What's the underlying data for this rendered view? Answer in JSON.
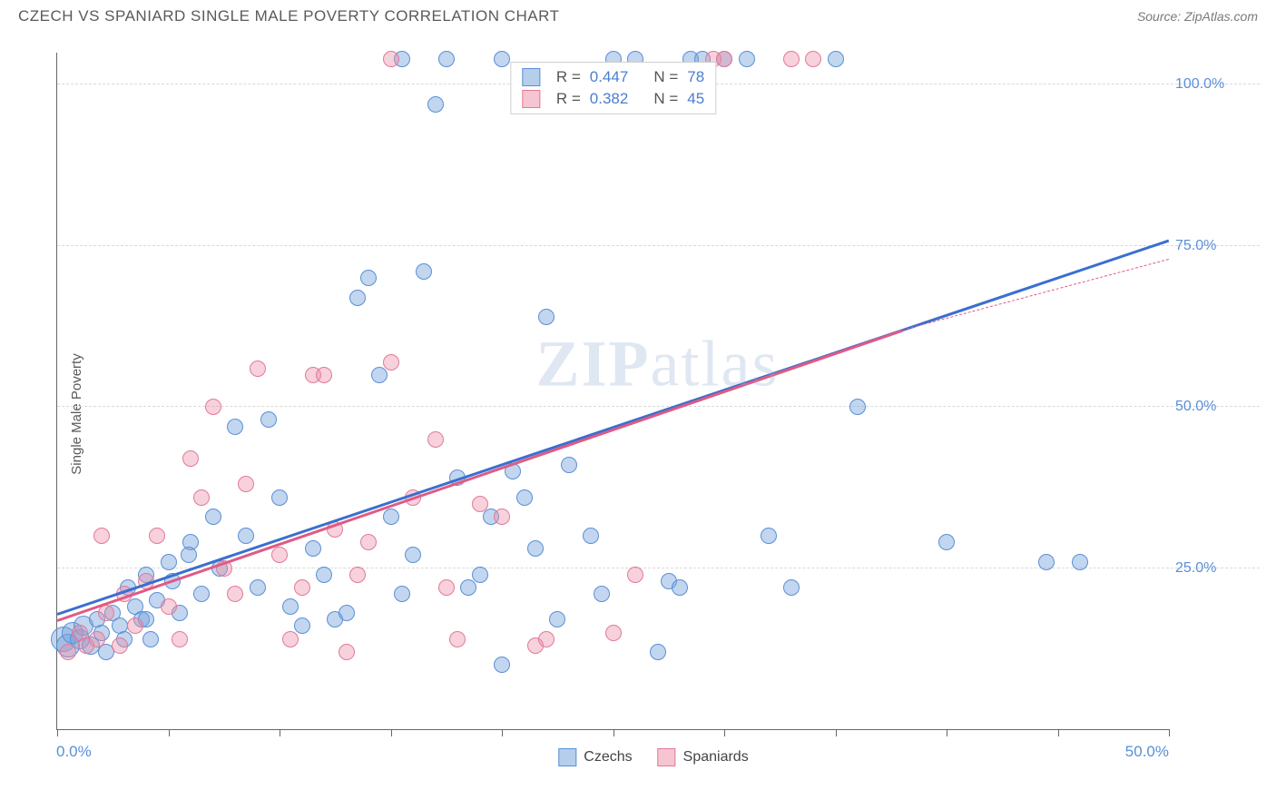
{
  "title": "CZECH VS SPANIARD SINGLE MALE POVERTY CORRELATION CHART",
  "source_label": "Source: ZipAtlas.com",
  "ylabel": "Single Male Poverty",
  "watermark": {
    "bold": "ZIP",
    "rest": "atlas"
  },
  "chart": {
    "type": "scatter",
    "xlim": [
      0,
      50
    ],
    "ylim": [
      0,
      105
    ],
    "x_ticks": [
      0,
      5,
      10,
      15,
      20,
      25,
      30,
      35,
      40,
      45,
      50
    ],
    "x_tick_labels": {
      "start": "0.0%",
      "end": "50.0%"
    },
    "y_ticks": [
      25,
      50,
      75,
      100
    ],
    "y_tick_labels": [
      "25.0%",
      "50.0%",
      "75.0%",
      "100.0%"
    ],
    "grid_color": "#d9d9d9",
    "background": "#ffffff",
    "axis_color": "#666666",
    "marker_radius_min": 7,
    "marker_radius_max": 11,
    "marker_opacity": 0.55,
    "series": [
      {
        "name": "Czechs",
        "color_fill": "rgba(120,165,220,0.45)",
        "color_stroke": "#5a8fd6",
        "trend_color": "#3a6fd0",
        "trend": {
          "x0": 0,
          "y0": 18,
          "x1": 50,
          "y1": 76
        },
        "R": "0.447",
        "N": "78",
        "points": [
          [
            0.3,
            14,
            14
          ],
          [
            0.5,
            13,
            13
          ],
          [
            0.7,
            15,
            12
          ],
          [
            1.0,
            14,
            11
          ],
          [
            1.2,
            16,
            11
          ],
          [
            1.5,
            13,
            10
          ],
          [
            1.8,
            17,
            9
          ],
          [
            2.0,
            15,
            9
          ],
          [
            2.2,
            12,
            9
          ],
          [
            2.5,
            18,
            9
          ],
          [
            2.8,
            16,
            9
          ],
          [
            3.0,
            14,
            9
          ],
          [
            3.2,
            22,
            9
          ],
          [
            3.5,
            19,
            9
          ],
          [
            3.8,
            17,
            9
          ],
          [
            4.0,
            24,
            9
          ],
          [
            4.2,
            14,
            9
          ],
          [
            4.5,
            20,
            9
          ],
          [
            5.0,
            26,
            9
          ],
          [
            5.2,
            23,
            9
          ],
          [
            5.5,
            18,
            9
          ],
          [
            6.0,
            29,
            9
          ],
          [
            5.9,
            27,
            9
          ],
          [
            6.5,
            21,
            9
          ],
          [
            4.0,
            17,
            9
          ],
          [
            7.0,
            33,
            9
          ],
          [
            7.3,
            25,
            9
          ],
          [
            8.0,
            47,
            9
          ],
          [
            8.5,
            30,
            9
          ],
          [
            9.0,
            22,
            9
          ],
          [
            9.5,
            48,
            9
          ],
          [
            10.0,
            36,
            9
          ],
          [
            10.5,
            19,
            9
          ],
          [
            11.0,
            16,
            9
          ],
          [
            11.5,
            28,
            9
          ],
          [
            12.0,
            24,
            9
          ],
          [
            12.5,
            17,
            9
          ],
          [
            13.0,
            18,
            9
          ],
          [
            13.5,
            67,
            9
          ],
          [
            14.0,
            70,
            9
          ],
          [
            14.5,
            55,
            9
          ],
          [
            15.0,
            33,
            9
          ],
          [
            15.5,
            21,
            9
          ],
          [
            16.0,
            27,
            9
          ],
          [
            16.5,
            71,
            9
          ],
          [
            17.0,
            97,
            9
          ],
          [
            15.5,
            104,
            9
          ],
          [
            17.5,
            104,
            9
          ],
          [
            18.0,
            39,
            9
          ],
          [
            18.5,
            22,
            9
          ],
          [
            19.0,
            24,
            9
          ],
          [
            19.5,
            33,
            9
          ],
          [
            20.0,
            104,
            9
          ],
          [
            20.5,
            40,
            9
          ],
          [
            21.0,
            36,
            9
          ],
          [
            21.5,
            28,
            9
          ],
          [
            22.0,
            64,
            9
          ],
          [
            22.5,
            17,
            9
          ],
          [
            23.0,
            41,
            9
          ],
          [
            20.0,
            10,
            9
          ],
          [
            24.0,
            30,
            9
          ],
          [
            24.5,
            21,
            9
          ],
          [
            25.0,
            104,
            9
          ],
          [
            27.0,
            12,
            9
          ],
          [
            27.5,
            23,
            9
          ],
          [
            28.0,
            22,
            9
          ],
          [
            28.5,
            104,
            9
          ],
          [
            30.0,
            104,
            9
          ],
          [
            31.0,
            104,
            9
          ],
          [
            32.0,
            30,
            9
          ],
          [
            33.0,
            22,
            9
          ],
          [
            35.0,
            104,
            9
          ],
          [
            36.0,
            50,
            9
          ],
          [
            40.0,
            29,
            9
          ],
          [
            44.5,
            26,
            9
          ],
          [
            46.0,
            26,
            9
          ],
          [
            26.0,
            104,
            9
          ],
          [
            29.0,
            104,
            9
          ]
        ]
      },
      {
        "name": "Spaniards",
        "color_fill": "rgba(235,140,165,0.40)",
        "color_stroke": "#e27a98",
        "trend_color": "#e05a85",
        "trend": {
          "x0": 0,
          "y0": 17,
          "x1": 38,
          "y1": 62
        },
        "trend_dash": {
          "x0": 38,
          "y0": 62,
          "x1": 50,
          "y1": 73
        },
        "R": "0.382",
        "N": "45",
        "points": [
          [
            0.5,
            12,
            9
          ],
          [
            1.0,
            15,
            9
          ],
          [
            1.3,
            13,
            9
          ],
          [
            1.8,
            14,
            9
          ],
          [
            2.0,
            30,
            9
          ],
          [
            2.2,
            18,
            9
          ],
          [
            2.8,
            13,
            9
          ],
          [
            3.0,
            21,
            9
          ],
          [
            3.5,
            16,
            9
          ],
          [
            4.0,
            23,
            9
          ],
          [
            4.5,
            30,
            9
          ],
          [
            5.0,
            19,
            9
          ],
          [
            5.5,
            14,
            9
          ],
          [
            6.0,
            42,
            9
          ],
          [
            6.5,
            36,
            9
          ],
          [
            7.0,
            50,
            9
          ],
          [
            7.5,
            25,
            9
          ],
          [
            8.0,
            21,
            9
          ],
          [
            8.5,
            38,
            9
          ],
          [
            9.0,
            56,
            9
          ],
          [
            10.0,
            27,
            9
          ],
          [
            10.5,
            14,
            9
          ],
          [
            11.0,
            22,
            9
          ],
          [
            11.5,
            55,
            9
          ],
          [
            12.0,
            55,
            9
          ],
          [
            12.5,
            31,
            9
          ],
          [
            13.0,
            12,
            9
          ],
          [
            13.5,
            24,
            9
          ],
          [
            14.0,
            29,
            9
          ],
          [
            15.0,
            57,
            9
          ],
          [
            16.0,
            36,
            9
          ],
          [
            15.0,
            104,
            9
          ],
          [
            17.0,
            45,
            9
          ],
          [
            17.5,
            22,
            9
          ],
          [
            18.0,
            14,
            9
          ],
          [
            19.0,
            35,
            9
          ],
          [
            20.0,
            33,
            9
          ],
          [
            21.5,
            13,
            9
          ],
          [
            22.0,
            14,
            9
          ],
          [
            25.0,
            15,
            9
          ],
          [
            26.0,
            24,
            9
          ],
          [
            29.5,
            104,
            9
          ],
          [
            30.0,
            104,
            9
          ],
          [
            34.0,
            104,
            9
          ],
          [
            33.0,
            104,
            9
          ]
        ]
      }
    ],
    "legend": {
      "items": [
        {
          "label": "Czechs",
          "fill": "rgba(120,165,220,0.55)",
          "stroke": "#5a8fd6"
        },
        {
          "label": "Spaniards",
          "fill": "rgba(235,140,165,0.50)",
          "stroke": "#e27a98"
        }
      ]
    },
    "stats_box": {
      "R_label": "R =",
      "N_label": "N ="
    }
  }
}
